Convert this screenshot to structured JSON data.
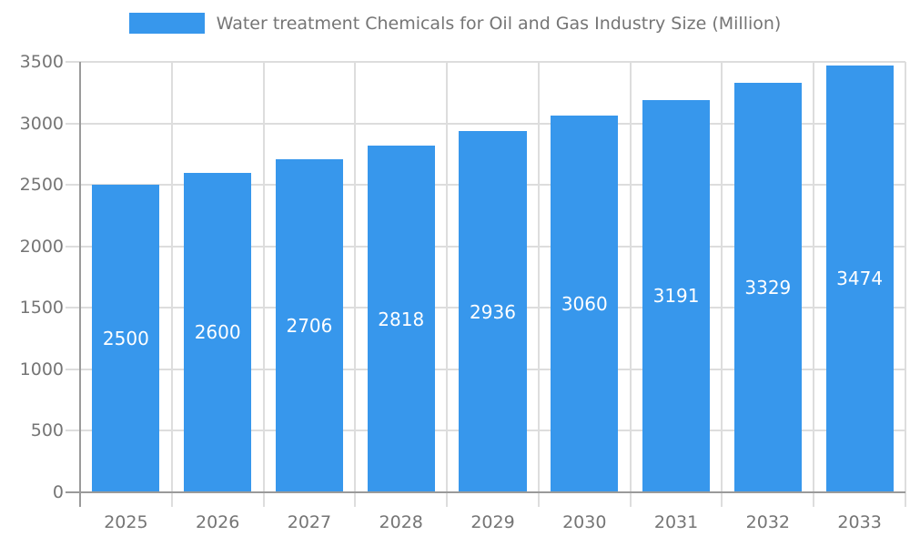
{
  "legend": {
    "label": "Water treatment Chemicals for Oil and Gas Industry Size (Million)"
  },
  "chart_data": {
    "type": "bar",
    "title": "Water treatment Chemicals for Oil and Gas Industry Size (Million)",
    "categories": [
      "2025",
      "2026",
      "2027",
      "2028",
      "2029",
      "2030",
      "2031",
      "2032",
      "2033"
    ],
    "values": [
      2500,
      2600,
      2706,
      2818,
      2936,
      3060,
      3191,
      3329,
      3474
    ],
    "value_labels": [
      "2500",
      "2600",
      "2706",
      "2818",
      "2936",
      "3060",
      "3191",
      "3329",
      "3474"
    ],
    "xlabel": "",
    "ylabel": "",
    "ylim": [
      0,
      3500
    ],
    "yticks": [
      0,
      500,
      1000,
      1500,
      2000,
      2500,
      3000,
      3500
    ],
    "grid": true,
    "legend_position": "top",
    "colors": {
      "bar": "#3797EC",
      "value_label": "#ffffff",
      "axis_text": "#757575",
      "grid": "#DDDDDD",
      "axis_line": "#9A9A9A"
    }
  }
}
